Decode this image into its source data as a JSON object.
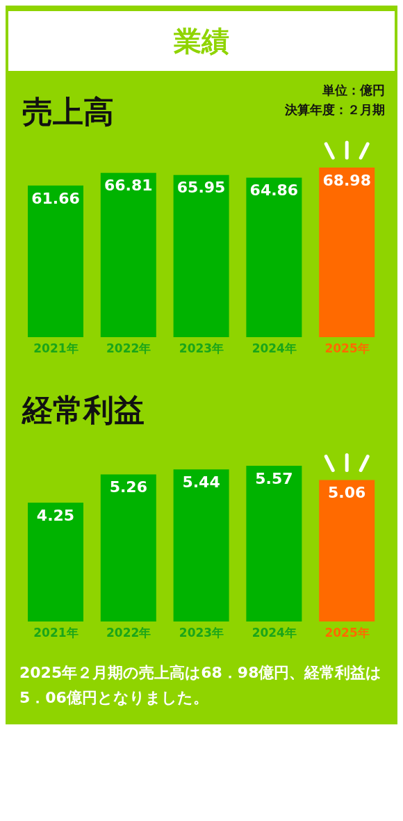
{
  "chart_data": [
    {
      "type": "bar",
      "title": "売上高",
      "categories": [
        "2021年",
        "2022年",
        "2023年",
        "2024年",
        "2025年"
      ],
      "values": [
        61.66,
        66.81,
        65.95,
        64.86,
        68.98
      ],
      "colors": [
        "#00b300",
        "#00b300",
        "#00b300",
        "#00b300",
        "#ff6a00"
      ],
      "data_labels": true,
      "annotations": [
        "業績",
        "単位：億円",
        "決算年度：２月期"
      ]
    },
    {
      "type": "bar",
      "title": "経常利益",
      "categories": [
        "2021年",
        "2022年",
        "2023年",
        "2024年",
        "2025年"
      ],
      "values": [
        4.25,
        5.26,
        5.44,
        5.57,
        5.06
      ],
      "colors": [
        "#00b300",
        "#00b300",
        "#00b300",
        "#00b300",
        "#ff6a00"
      ],
      "data_labels": true,
      "annotations": [
        "2025年２月期の売上高は68．98億円、経常利益は5．06億円となりました。"
      ]
    }
  ]
}
